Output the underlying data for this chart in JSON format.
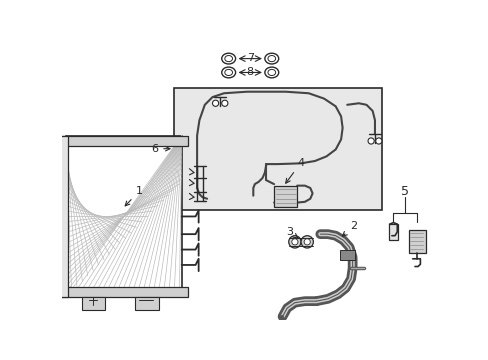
{
  "bg_color": "#ffffff",
  "box_bg": "#e8e8e8",
  "line_color": "#2a2a2a",
  "gray_fill": "#d0d0d0",
  "light_gray": "#e4e4e4",
  "dark_gray": "#888888"
}
